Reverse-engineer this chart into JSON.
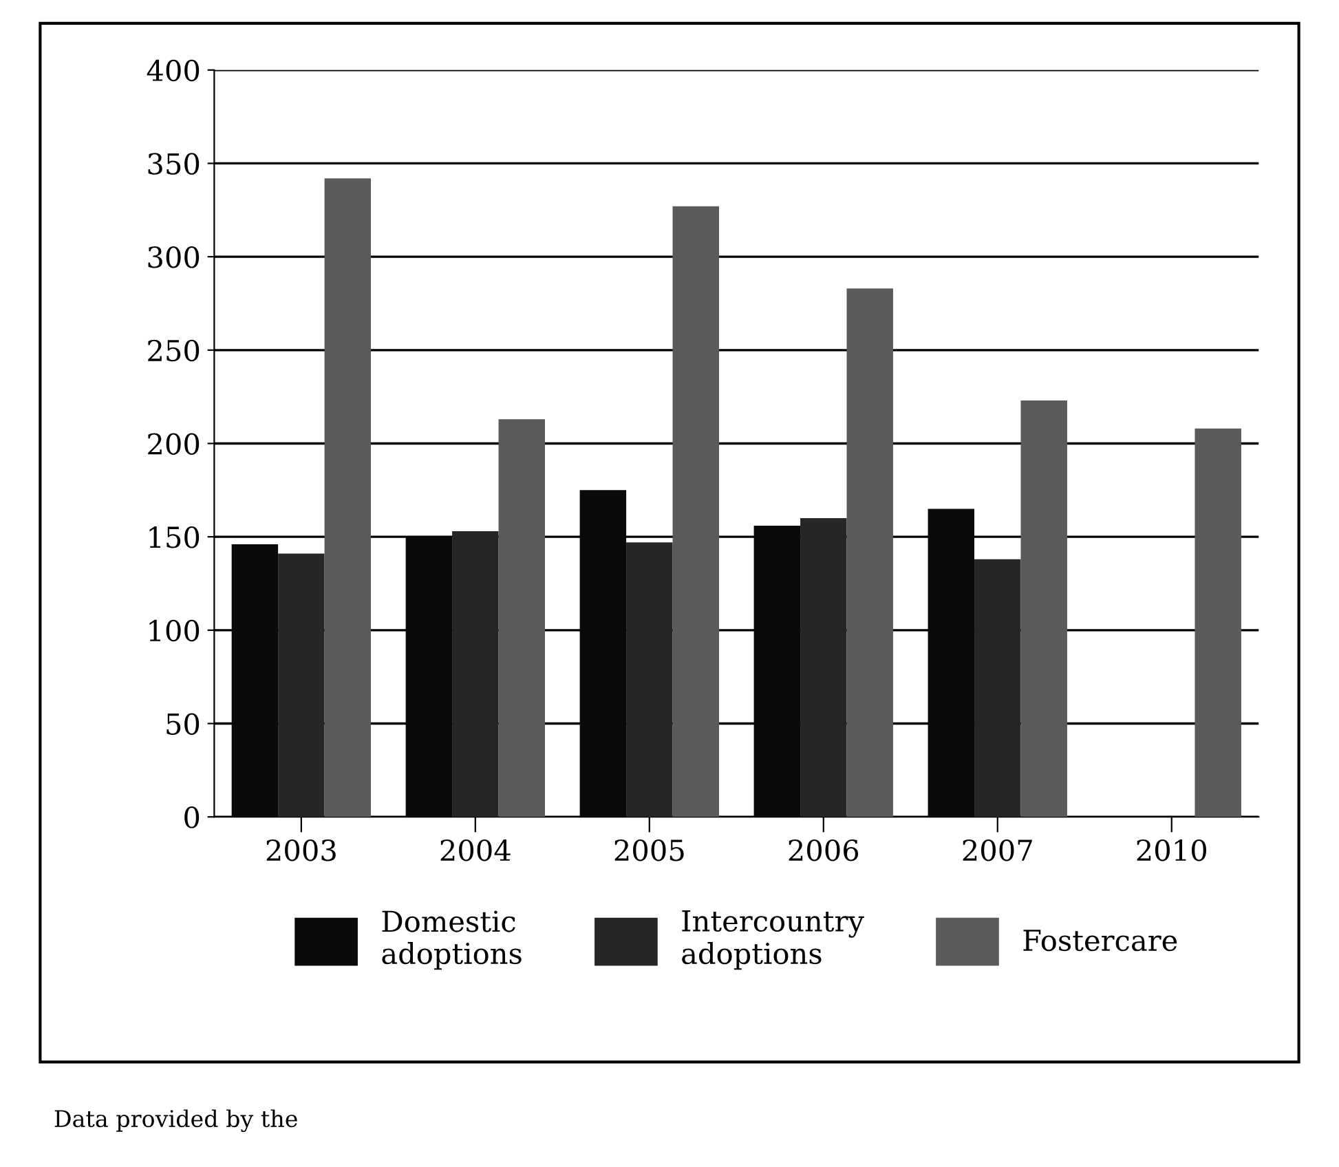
{
  "chart_data": {
    "type": "bar",
    "categories": [
      "2003",
      "2004",
      "2005",
      "2006",
      "2007",
      "2010"
    ],
    "series": [
      {
        "name": "Domestic\nadoptions",
        "color": "#0a0a0a",
        "values": [
          146,
          150,
          175,
          156,
          165,
          null
        ]
      },
      {
        "name": "Intercountry\nadoptions",
        "color": "#262626",
        "values": [
          141,
          153,
          147,
          160,
          138,
          null
        ]
      },
      {
        "name": "Fostercare",
        "color": "#5a5a5a",
        "values": [
          342,
          213,
          327,
          283,
          223,
          208
        ]
      }
    ],
    "ylim": [
      0,
      400
    ],
    "yticks": [
      0,
      50,
      100,
      150,
      200,
      250,
      300,
      350,
      400
    ],
    "grid": "y",
    "legend": "bottom",
    "annotations": [
      "Data provided by the"
    ]
  }
}
